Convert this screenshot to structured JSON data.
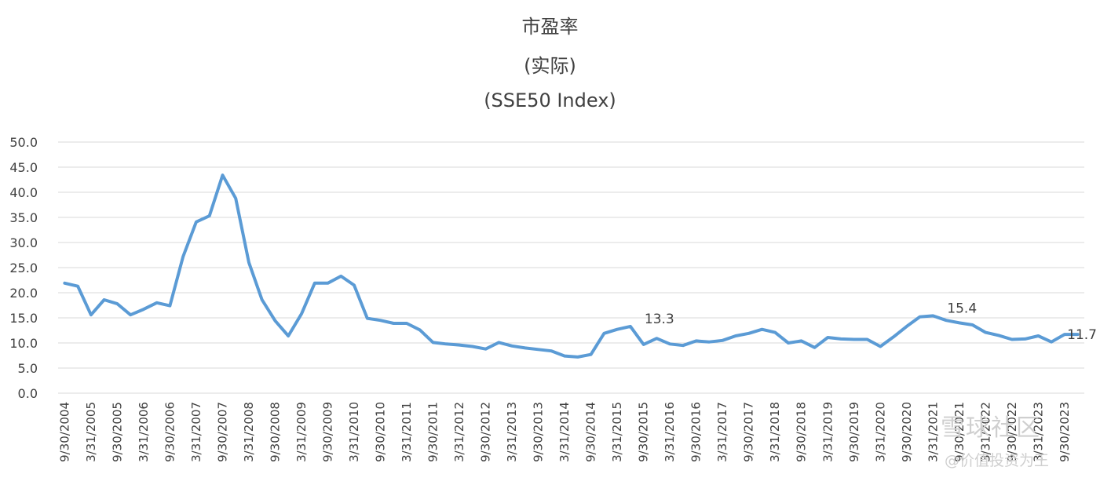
{
  "chart_data": {
    "type": "line",
    "title": "市盈率",
    "subtitle": "(实际)",
    "subtitle2": "(SSE50 Index)",
    "ylim": [
      0,
      50
    ],
    "yticks": [
      "0.0",
      "5.0",
      "10.0",
      "15.0",
      "20.0",
      "25.0",
      "30.0",
      "35.0",
      "40.0",
      "45.0",
      "50.0"
    ],
    "grid": true,
    "color": "#5B9BD5",
    "x": [
      "9/30/2004",
      "12/31/2004",
      "3/31/2005",
      "6/30/2005",
      "9/30/2005",
      "12/31/2005",
      "3/31/2006",
      "6/30/2006",
      "9/30/2006",
      "12/31/2006",
      "3/31/2007",
      "6/30/2007",
      "9/30/2007",
      "12/31/2007",
      "3/31/2008",
      "6/30/2008",
      "9/30/2008",
      "12/31/2008",
      "3/31/2009",
      "6/30/2009",
      "9/30/2009",
      "12/31/2009",
      "3/31/2010",
      "6/30/2010",
      "9/30/2010",
      "12/31/2010",
      "3/31/2011",
      "6/30/2011",
      "9/30/2011",
      "12/31/2011",
      "3/31/2012",
      "6/30/2012",
      "9/30/2012",
      "12/31/2012",
      "3/31/2013",
      "6/30/2013",
      "9/30/2013",
      "12/31/2013",
      "3/31/2014",
      "6/30/2014",
      "9/30/2014",
      "12/31/2014",
      "3/31/2015",
      "6/30/2015",
      "9/30/2015",
      "12/31/2015",
      "3/31/2016",
      "6/30/2016",
      "9/30/2016",
      "12/31/2016",
      "3/31/2017",
      "6/30/2017",
      "9/30/2017",
      "12/31/2017",
      "3/31/2018",
      "6/30/2018",
      "9/30/2018",
      "12/31/2018",
      "3/31/2019",
      "6/30/2019",
      "9/30/2019",
      "12/31/2019",
      "3/31/2020",
      "6/30/2020",
      "9/30/2020",
      "12/31/2020",
      "3/31/2021",
      "6/30/2021",
      "9/30/2021",
      "12/31/2021",
      "3/31/2022",
      "6/30/2022",
      "9/30/2022",
      "12/31/2022",
      "3/31/2023",
      "6/30/2023",
      "9/30/2023",
      "12/31/2023"
    ],
    "xtick_labels": [
      "9/30/2004",
      "3/31/2005",
      "9/30/2005",
      "3/31/2006",
      "9/30/2006",
      "3/31/2007",
      "9/30/2007",
      "3/31/2008",
      "9/30/2008",
      "3/31/2009",
      "9/30/2009",
      "3/31/2010",
      "9/30/2010",
      "3/31/2011",
      "9/30/2011",
      "3/31/2012",
      "9/30/2012",
      "3/31/2013",
      "9/30/2013",
      "3/31/2014",
      "9/30/2014",
      "3/31/2015",
      "9/30/2015",
      "3/31/2016",
      "9/30/2016",
      "3/31/2017",
      "9/30/2017",
      "3/31/2018",
      "9/30/2018",
      "3/31/2019",
      "9/30/2019",
      "3/31/2020",
      "9/30/2020",
      "3/31/2021",
      "9/30/2021",
      "3/31/2022",
      "9/30/2022",
      "3/31/2023",
      "9/30/2023"
    ],
    "values": [
      21.9,
      21.3,
      15.6,
      18.6,
      17.8,
      15.6,
      16.7,
      18.0,
      17.4,
      27.2,
      34.1,
      35.3,
      43.4,
      38.8,
      26.0,
      18.6,
      14.4,
      11.4,
      15.8,
      21.9,
      21.9,
      23.3,
      21.5,
      14.9,
      14.5,
      13.9,
      13.9,
      12.6,
      10.1,
      9.8,
      9.6,
      9.3,
      8.8,
      10.1,
      9.4,
      9.0,
      8.7,
      8.4,
      7.4,
      7.2,
      7.7,
      11.9,
      12.7,
      13.3,
      9.7,
      10.9,
      9.8,
      9.5,
      10.4,
      10.2,
      10.5,
      11.4,
      11.9,
      12.7,
      12.1,
      10.0,
      10.4,
      9.1,
      11.1,
      10.8,
      10.7,
      10.7,
      9.3,
      11.2,
      13.3,
      15.2,
      15.4,
      14.5,
      14.0,
      13.6,
      12.1,
      11.5,
      10.7,
      10.8,
      11.4,
      10.2,
      11.7,
      11.7
    ],
    "annotations": [
      {
        "label": "13.3",
        "index": 43
      },
      {
        "label": "15.4",
        "index": 66
      },
      {
        "label": "11.7",
        "index": 77
      }
    ]
  },
  "watermark": {
    "line1": "雪球社区",
    "line2": "@价值投资为王"
  }
}
